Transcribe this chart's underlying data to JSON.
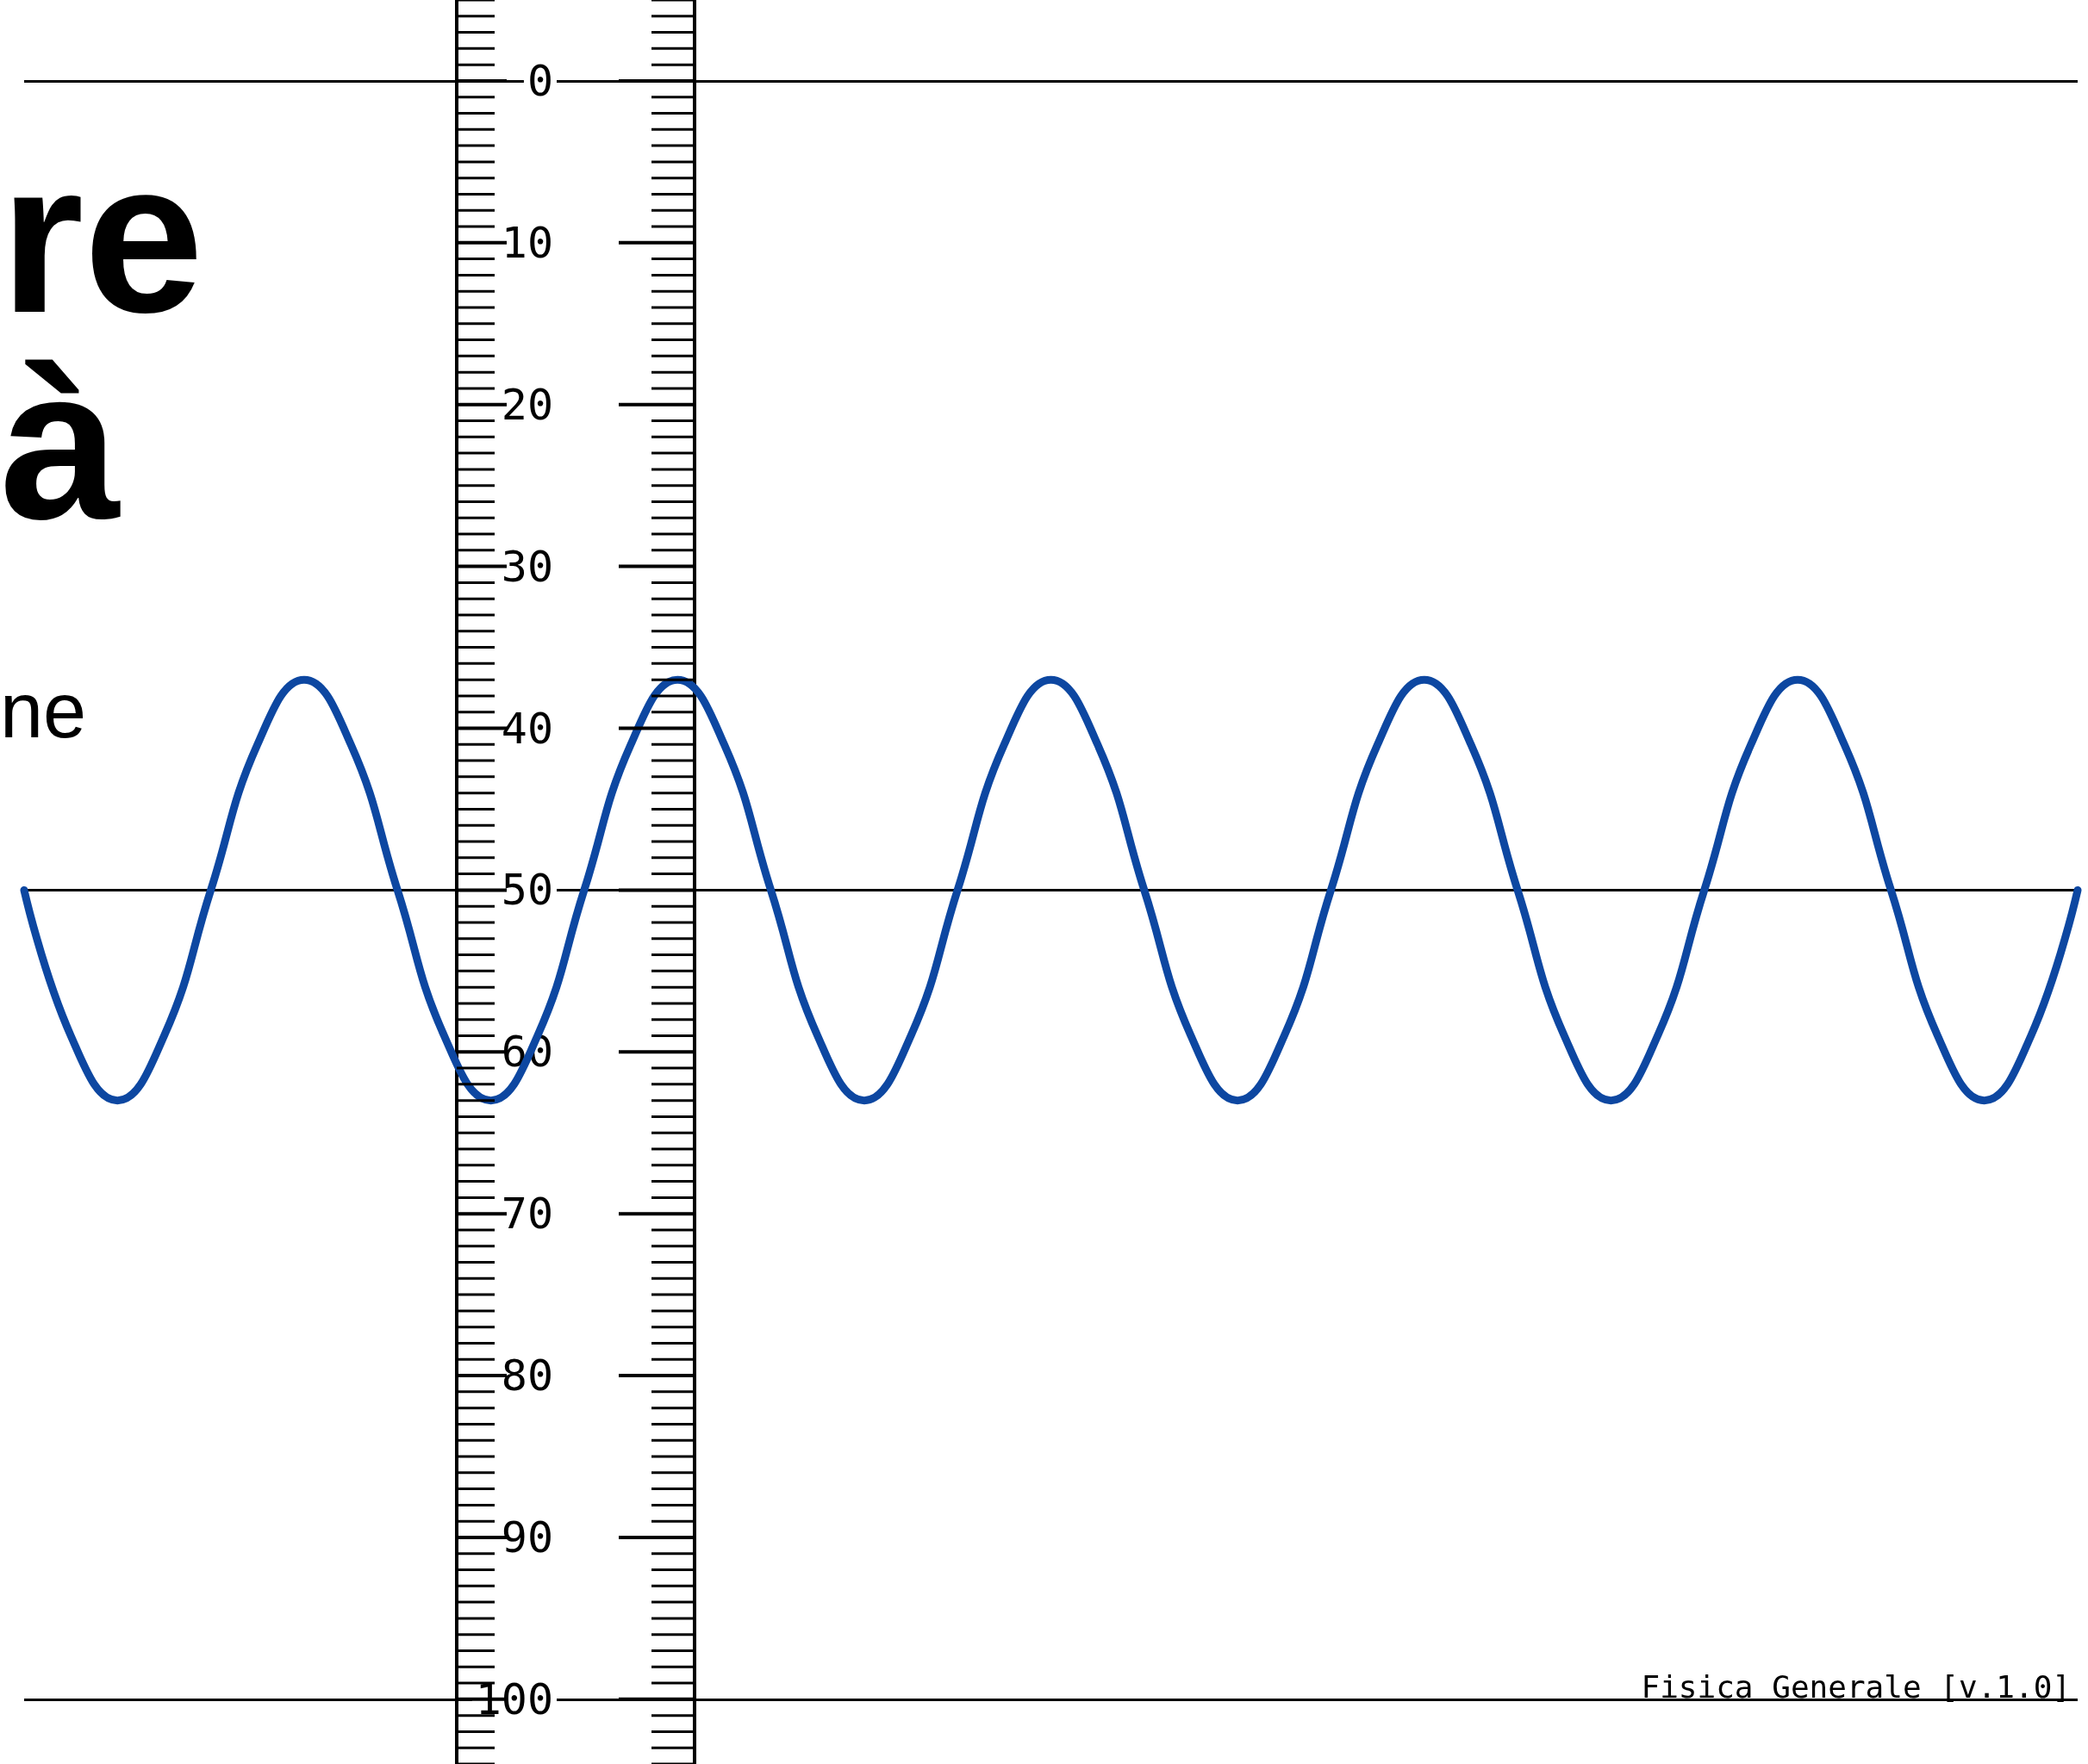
{
  "chart_data": {
    "type": "line",
    "categories": [
      null,
      null,
      null,
      null,
      null,
      null,
      null,
      null,
      null,
      null,
      null,
      null,
      null,
      null,
      null,
      null,
      null,
      null,
      null,
      null,
      null,
      null,
      null,
      null,
      null,
      null,
      null,
      null,
      null,
      null,
      null,
      null,
      null,
      null,
      null,
      null,
      null,
      null,
      null,
      null,
      null,
      null,
      null,
      null,
      null
    ],
    "series": [
      {
        "color": "#0d47a1",
        "values": [
          50,
          59,
          63,
          59,
          50,
          41,
          37,
          41,
          50,
          59,
          63,
          59,
          50,
          41,
          37,
          41,
          50,
          59,
          63,
          59,
          50,
          41,
          37,
          41,
          50,
          59,
          63,
          59,
          50,
          41,
          37,
          41,
          50,
          59,
          63,
          59,
          50,
          41,
          37,
          41,
          50,
          59,
          63,
          59,
          50
        ]
      }
    ],
    "ylim": [
      104,
      -5
    ],
    "yticks": [
      0,
      10,
      20,
      30,
      40,
      50,
      60,
      70,
      80,
      90,
      100
    ],
    "tick_labels": "y",
    "grid": false,
    "line_style": "solid",
    "ref_lines": [
      {
        "axis": "y",
        "value": 0,
        "color": "#000000"
      },
      {
        "axis": "y",
        "value": 50,
        "color": "#000000"
      },
      {
        "axis": "y",
        "value": 100,
        "color": "#000000"
      }
    ],
    "annotations": [
      "re",
      "à",
      "ne",
      "Fisica Generale [v.1.0]"
    ]
  }
}
